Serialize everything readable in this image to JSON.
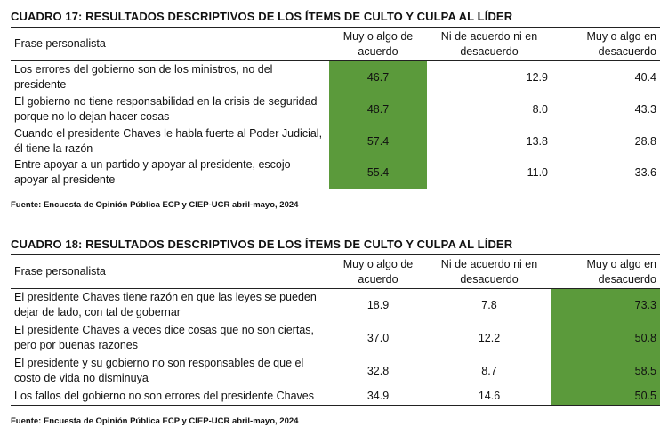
{
  "highlight_color": "#5b9a3b",
  "tables": [
    {
      "title": "CUADRO 17: RESULTADOS DESCRIPTIVOS DE LOS ÍTEMS DE CULTO Y CULPA AL LÍDER",
      "headers": [
        "Frase personalista",
        "Muy o algo de acuerdo",
        "Ni de acuerdo ni en desacuerdo",
        "Muy o algo en desacuerdo"
      ],
      "rows": [
        {
          "label": "Los errores del gobierno son de los ministros, no del presidente",
          "values": [
            "46.7",
            "12.9",
            "40.4"
          ]
        },
        {
          "label": "El gobierno no tiene responsabilidad en la crisis de seguridad porque no lo dejan hacer cosas",
          "values": [
            "48.7",
            "8.0",
            "43.3"
          ]
        },
        {
          "label": "Cuando el presidente Chaves le habla fuerte al Poder Judicial, él tiene la razón",
          "values": [
            "57.4",
            "13.8",
            "28.8"
          ]
        },
        {
          "label": "Entre apoyar a un partido y apoyar al presidente, escojo apoyar al presidente",
          "values": [
            "55.4",
            "11.0",
            "33.6"
          ]
        }
      ],
      "highlighted_column": 1,
      "source": "Fuente: Encuesta de Opinión Pública ECP y CIEP-UCR abril-mayo, 2024"
    },
    {
      "title": "CUADRO 18: RESULTADOS DESCRIPTIVOS DE LOS ÍTEMS DE CULTO Y CULPA AL LÍDER",
      "headers": [
        "Frase personalista",
        "Muy o algo de acuerdo",
        "Ni de acuerdo ni en desacuerdo",
        "Muy o algo en desacuerdo"
      ],
      "rows": [
        {
          "label": "El presidente Chaves tiene razón en que las leyes se pueden dejar de lado, con tal de gobernar",
          "values": [
            "18.9",
            "7.8",
            "73.3"
          ]
        },
        {
          "label": "El presidente Chaves a veces dice cosas que no son ciertas, pero por buenas razones",
          "values": [
            "37.0",
            "12.2",
            "50.8"
          ]
        },
        {
          "label": "El presidente y su gobierno no son responsables de que el costo de vida no disminuya",
          "values": [
            "32.8",
            "8.7",
            "58.5"
          ]
        },
        {
          "label": "Los fallos del gobierno no son errores del presidente Chaves",
          "values": [
            "34.9",
            "14.6",
            "50.5"
          ]
        }
      ],
      "highlighted_column": 3,
      "source": "Fuente: Encuesta de Opinión Pública ECP y CIEP-UCR abril-mayo, 2024"
    }
  ]
}
